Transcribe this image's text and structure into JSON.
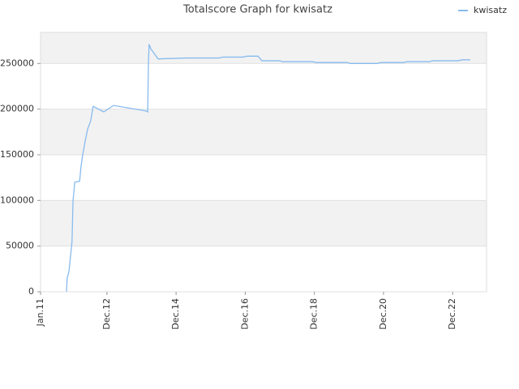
{
  "chart_data": {
    "type": "line",
    "title": "Totalscore Graph for kwisatz",
    "x": [
      2011.75,
      2011.77,
      2011.82,
      2011.87,
      2011.91,
      2011.94,
      2011.99,
      2012.13,
      2012.17,
      2012.22,
      2012.29,
      2012.36,
      2012.45,
      2012.52,
      2012.83,
      2013.11,
      2014.05,
      2014.1,
      2014.12,
      2014.14,
      2014.19,
      2014.4,
      2015.22,
      2016.16,
      2016.28,
      2016.86,
      2016.98,
      2017.29,
      2017.4,
      2017.92,
      2017.99,
      2018.86,
      2018.97,
      2019.87,
      2019.96,
      2020.73,
      2020.85,
      2021.51,
      2021.6,
      2022.26,
      2022.33,
      2023.08,
      2023.2,
      2023.43
    ],
    "series": [
      {
        "name": "kwisatz",
        "color": "#88bbee",
        "values": [
          0,
          15000,
          22000,
          40000,
          55000,
          100000,
          120000,
          121000,
          137000,
          150000,
          165000,
          178000,
          187000,
          203000,
          197000,
          204000,
          198000,
          197000,
          250000,
          271000,
          266000,
          255000,
          256000,
          256000,
          257000,
          257000,
          258000,
          258000,
          253000,
          253000,
          252000,
          252000,
          251000,
          251000,
          250000,
          250000,
          251000,
          251000,
          252000,
          252000,
          253000,
          253000,
          254000,
          254000
        ]
      }
    ],
    "xlim": [
      2011.0,
      2023.9
    ],
    "xticks": [
      {
        "value": 2011.0,
        "label": "Jan.11"
      },
      {
        "value": 2012.92,
        "label": "Dec.12"
      },
      {
        "value": 2014.92,
        "label": "Dec.14"
      },
      {
        "value": 2016.92,
        "label": "Dec.16"
      },
      {
        "value": 2018.92,
        "label": "Dec.18"
      },
      {
        "value": 2020.92,
        "label": "Dec.20"
      },
      {
        "value": 2022.92,
        "label": "Dec.22"
      }
    ],
    "ylim": [
      0,
      284000
    ],
    "yticks": [
      0,
      50000,
      100000,
      150000,
      200000,
      250000
    ],
    "grid": true,
    "band_color": "#f2f2f2",
    "legend": "top-right"
  }
}
